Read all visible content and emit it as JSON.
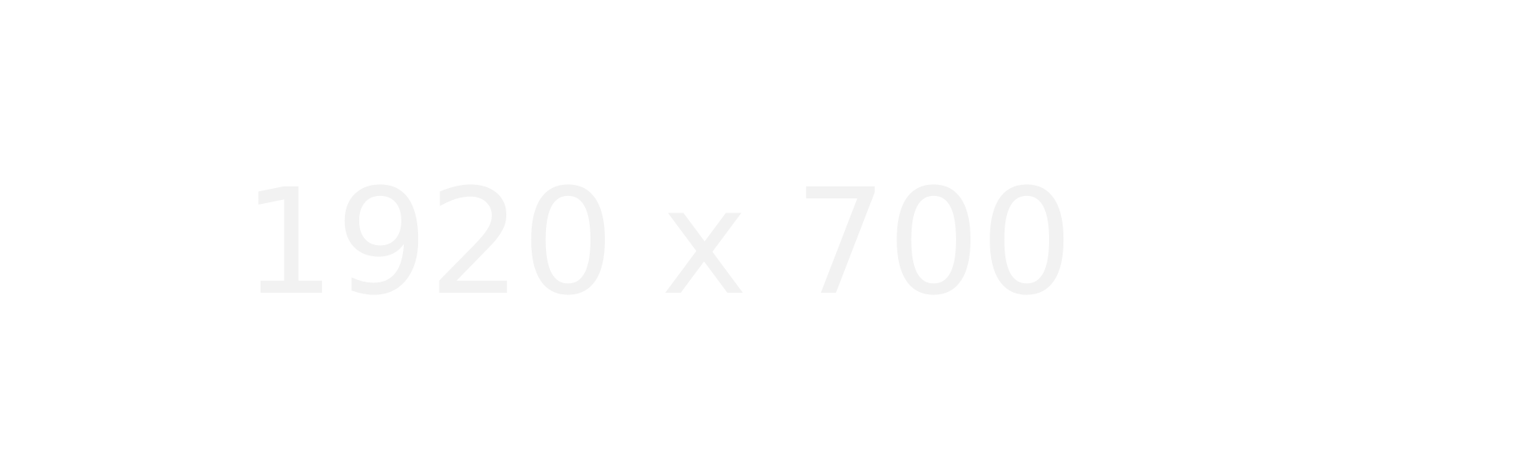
{
  "placeholder": {
    "label": "1920 x 700",
    "text_color": "#f2f2f2",
    "background_color": "#ffffff"
  }
}
